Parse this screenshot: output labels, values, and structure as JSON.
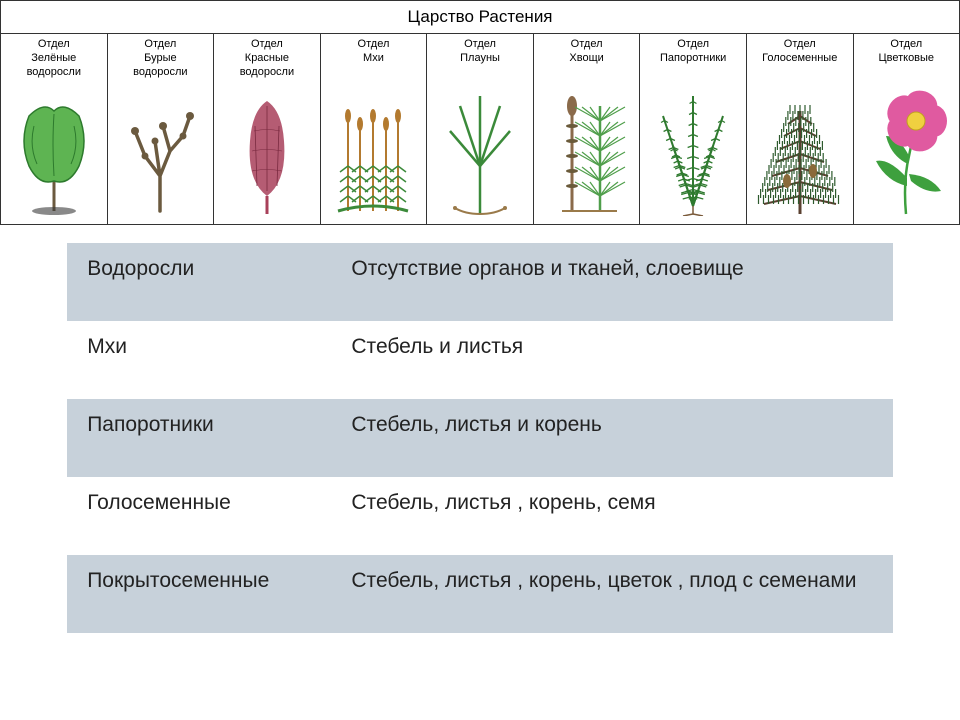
{
  "title": "Царство Растения",
  "colors": {
    "border": "#333333",
    "row_alt": "#c7d1da",
    "row_main": "#ffffff",
    "text": "#222222",
    "green_algae": "#5eb452",
    "brown_algae": "#6b5a3f",
    "red_algae": "#a8405a",
    "moss_green": "#3b8a3a",
    "moss_stalk": "#b37a2f",
    "horsetail": "#4f9e4a",
    "fern": "#2f7a2f",
    "fern_light": "#6abf5a",
    "conifer": "#2d5a2d",
    "conifer_branch": "#5a4030",
    "flower_pink": "#e05aa0",
    "flower_center": "#f0d040",
    "leaf_green": "#3ea03e"
  },
  "divisions": [
    {
      "label_l1": "Отдел",
      "label_l2": "Зелёные",
      "label_l3": "водоросли",
      "kind": "green-algae"
    },
    {
      "label_l1": "Отдел",
      "label_l2": "Бурые",
      "label_l3": "водоросли",
      "kind": "brown-algae"
    },
    {
      "label_l1": "Отдел",
      "label_l2": "Красные",
      "label_l3": "водоросли",
      "kind": "red-algae"
    },
    {
      "label_l1": "Отдел",
      "label_l2": "Мхи",
      "label_l3": "",
      "kind": "moss"
    },
    {
      "label_l1": "Отдел",
      "label_l2": "Плауны",
      "label_l3": "",
      "kind": "clubmoss"
    },
    {
      "label_l1": "Отдел",
      "label_l2": "Хвощи",
      "label_l3": "",
      "kind": "horsetail"
    },
    {
      "label_l1": "Отдел",
      "label_l2": "Папоротники",
      "label_l3": "",
      "kind": "fern"
    },
    {
      "label_l1": "Отдел",
      "label_l2": "Голосеменные",
      "label_l3": "",
      "kind": "conifer"
    },
    {
      "label_l1": "Отдел",
      "label_l2": "Цветковые",
      "label_l3": "",
      "kind": "flower"
    }
  ],
  "table_rows": [
    {
      "group": "Водоросли",
      "desc": "Отсутствие органов и тканей, слоевище"
    },
    {
      "group": "Мхи",
      "desc": "Стебель и листья"
    },
    {
      "group": "Папоротники",
      "desc": "Стебель, листья и корень"
    },
    {
      "group": "Голосеменные",
      "desc": "Стебель, листья , корень, семя"
    },
    {
      "group": "Покрытосеменные",
      "desc": "Стебель, листья , корень,  цветок , плод с семенами"
    }
  ]
}
